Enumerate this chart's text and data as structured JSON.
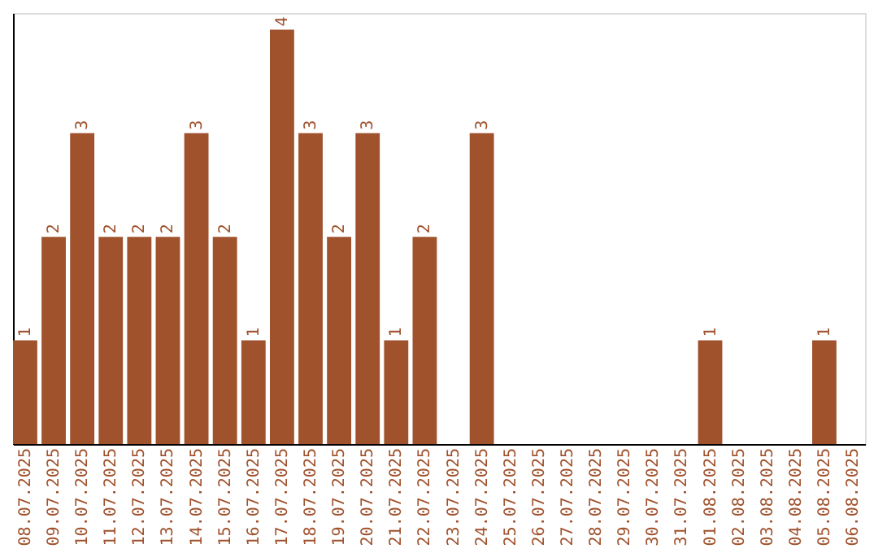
{
  "chart_data": {
    "type": "bar",
    "categories": [
      "08.07.2025",
      "09.07.2025",
      "10.07.2025",
      "11.07.2025",
      "12.07.2025",
      "13.07.2025",
      "14.07.2025",
      "15.07.2025",
      "16.07.2025",
      "17.07.2025",
      "18.07.2025",
      "19.07.2025",
      "20.07.2025",
      "21.07.2025",
      "22.07.2025",
      "23.07.2025",
      "24.07.2025",
      "25.07.2025",
      "26.07.2025",
      "27.07.2025",
      "28.07.2025",
      "29.07.2025",
      "30.07.2025",
      "31.07.2025",
      "01.08.2025",
      "02.08.2025",
      "03.08.2025",
      "04.08.2025",
      "05.08.2025",
      "06.08.2025"
    ],
    "values": [
      1,
      2,
      3,
      2,
      2,
      2,
      3,
      2,
      1,
      4,
      3,
      2,
      3,
      1,
      2,
      0,
      3,
      0,
      0,
      0,
      0,
      0,
      0,
      0,
      1,
      0,
      0,
      0,
      1,
      0
    ],
    "value_labels": [
      "1",
      "2",
      "3",
      "2",
      "2",
      "2",
      "3",
      "2",
      "1",
      "4",
      "3",
      "2",
      "3",
      "1",
      "2",
      null,
      "3",
      null,
      null,
      null,
      null,
      null,
      null,
      null,
      "1",
      null,
      null,
      null,
      "1",
      null
    ],
    "color": "#a0522d",
    "ylim": [
      0,
      4.16
    ],
    "tick_labels": "x"
  }
}
